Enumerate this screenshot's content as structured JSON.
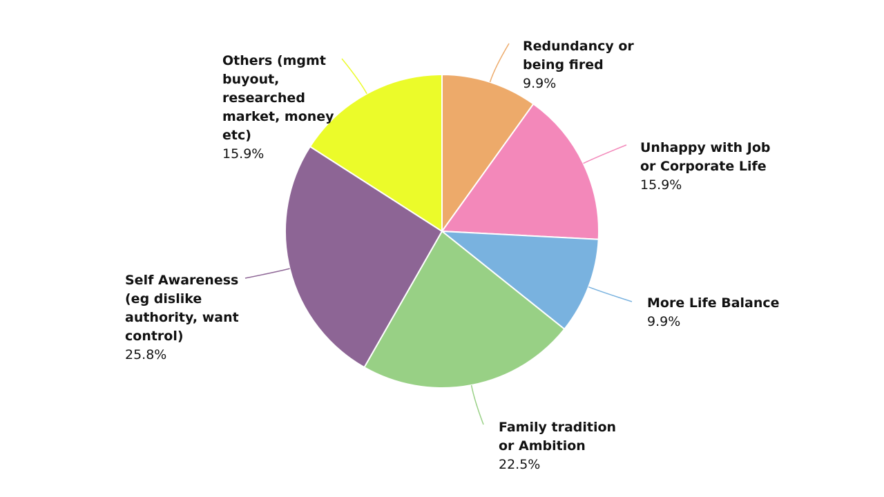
{
  "chart_data": {
    "type": "pie",
    "categories": [
      "Redundancy or\nbeing fired",
      "Unhappy with Job\nor Corporate Life",
      "More Life Balance",
      "Family tradition\nor Ambition",
      "Self Awareness\n(eg dislike\nauthority, want\ncontrol)",
      "Others (mgmt\nbuyout,\nresearched\nmarket, money\netc)"
    ],
    "values": [
      9.9,
      15.9,
      9.9,
      22.5,
      25.8,
      15.9
    ],
    "value_labels": [
      "9.9%",
      "15.9%",
      "9.9%",
      "22.5%",
      "25.8%",
      "15.9%"
    ],
    "colors": [
      "#edaa6a",
      "#f388ba",
      "#79b2df",
      "#98d085",
      "#8d6595",
      "#ebfb2a"
    ]
  }
}
